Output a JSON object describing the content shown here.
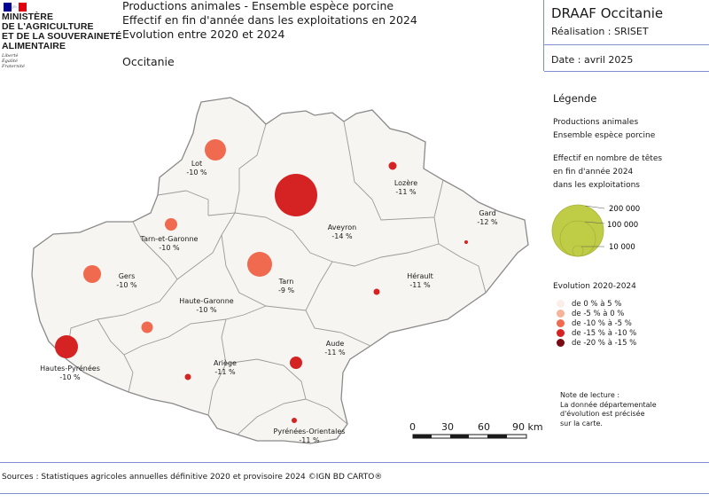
{
  "header": {
    "logo_lines": [
      "MINISTÈRE",
      "DE L'AGRICULTURE",
      "ET DE LA SOUVERAINETÉ",
      "ALIMENTAIRE"
    ],
    "logo_motto": [
      "Liberté",
      "Égalité",
      "Fraternité"
    ],
    "title_lines": [
      "Productions animales - Ensemble espèce porcine",
      "Effectif en fin d'année dans les exploitations en 2024",
      "Evolution entre 2020 et 2024"
    ],
    "region": "Occitanie",
    "org": "DRAAF Occitanie",
    "realisation": "Réalisation : SRISET",
    "date": "Date : avril 2025"
  },
  "legend": {
    "title": "Légende",
    "theme_lines": [
      "Productions animales",
      "Ensemble espèce porcine"
    ],
    "size_title_lines": [
      "Effectif en nombre de têtes",
      "en fin d'année 2024",
      "dans les exploitations"
    ],
    "size_values": [
      "200 000",
      "100 000",
      "10 000"
    ],
    "size_color": "#bfcc45",
    "evolution_title": "Evolution 2020-2024",
    "evolution_classes": [
      {
        "label": "de 0 % à 5 %",
        "color": "#fbeee8"
      },
      {
        "label": "de -5 % à 0 %",
        "color": "#f6b39a"
      },
      {
        "label": "de -10 % à -5 %",
        "color": "#ef6a4e"
      },
      {
        "label": "de -15 % à -10 %",
        "color": "#d42322"
      },
      {
        "label": "de -20 % à -15 %",
        "color": "#7a0b12"
      }
    ]
  },
  "note_lines": [
    "Note de lecture :",
    "La donnée départementale",
    "d'évolution est précisée",
    "sur la carte."
  ],
  "scale": {
    "ticks": [
      "0",
      "30",
      "60",
      "90 km"
    ]
  },
  "sources": "Sources : Statistiques agricoles annuelles définitive 2020 et provisoire 2024 ©IGN BD CARTO®",
  "departments": [
    {
      "name": "Lot",
      "change": "-10 %",
      "color": "#ef6a4e"
    },
    {
      "name": "Lozère",
      "change": "-11 %",
      "color": "#d42322"
    },
    {
      "name": "Aveyron",
      "change": "-14 %",
      "color": "#d42322"
    },
    {
      "name": "Gard",
      "change": "-12 %",
      "color": "#d42322"
    },
    {
      "name": "Tarn-et-Garonne",
      "change": "-10 %",
      "color": "#ef6a4e"
    },
    {
      "name": "Gers",
      "change": "-10 %",
      "color": "#ef6a4e"
    },
    {
      "name": "Tarn",
      "change": "-9 %",
      "color": "#ef6a4e"
    },
    {
      "name": "Hérault",
      "change": "-11 %",
      "color": "#d42322"
    },
    {
      "name": "Haute-Garonne",
      "change": "-10 %",
      "color": "#ef6a4e"
    },
    {
      "name": "Hautes-Pyrénées",
      "change": "-10 %",
      "color": "#d42322"
    },
    {
      "name": "Aude",
      "change": "-11 %",
      "color": "#d42322"
    },
    {
      "name": "Ariège",
      "change": "-11 %",
      "color": "#d42322"
    },
    {
      "name": "Pyrénées-Orientales",
      "change": "-11 %",
      "color": "#d42322"
    }
  ]
}
